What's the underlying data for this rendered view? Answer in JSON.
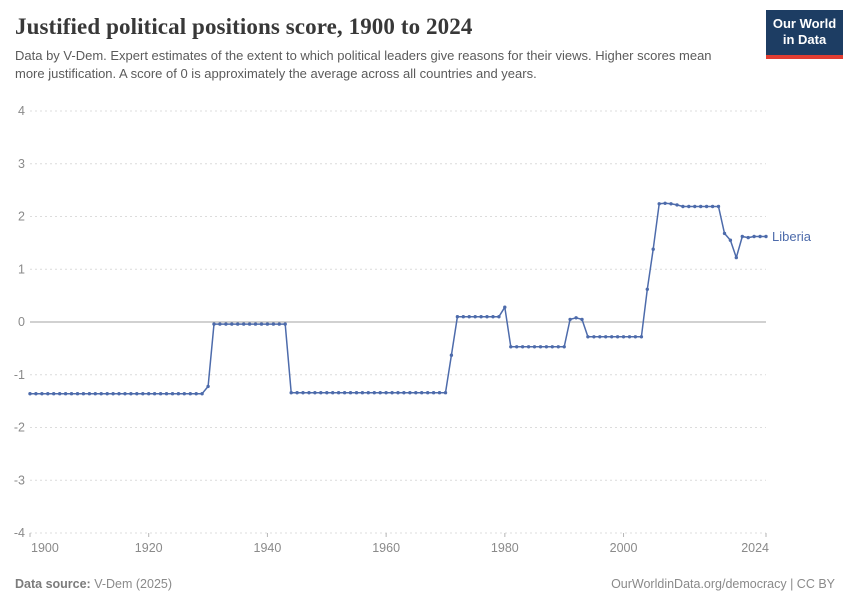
{
  "header": {
    "title": "Justified political positions score, 1900 to 2024",
    "subtitle": "Data by V-Dem. Expert estimates of the extent to which political leaders give reasons for their views. Higher scores mean more justification. A score of 0 is approximately the average across all countries and years.",
    "logo": {
      "line1": "Our World",
      "line2": "in Data",
      "bg": "#1d3d63",
      "accent": "#e23d32"
    }
  },
  "chart_data": {
    "type": "line",
    "title": "Justified political positions score, 1900 to 2024",
    "xlabel": "",
    "ylabel": "",
    "xlim": [
      1900,
      2024
    ],
    "ylim": [
      -4,
      4
    ],
    "x_ticks": [
      1900,
      1920,
      1940,
      1960,
      1980,
      2000,
      2024
    ],
    "y_ticks": [
      -4,
      -3,
      -2,
      -1,
      0,
      1,
      2,
      3,
      4
    ],
    "grid": "horizontal-dashed, zero-line-solid",
    "legend_position": "end-of-line-label",
    "series": [
      {
        "name": "Liberia",
        "color": "#4d6bab",
        "x_start": 1900,
        "x_step": 1,
        "values": [
          -1.36,
          -1.36,
          -1.36,
          -1.36,
          -1.36,
          -1.36,
          -1.36,
          -1.36,
          -1.36,
          -1.36,
          -1.36,
          -1.36,
          -1.36,
          -1.36,
          -1.36,
          -1.36,
          -1.36,
          -1.36,
          -1.36,
          -1.36,
          -1.36,
          -1.36,
          -1.36,
          -1.36,
          -1.36,
          -1.36,
          -1.36,
          -1.36,
          -1.36,
          -1.36,
          -1.22,
          -0.04,
          -0.04,
          -0.04,
          -0.04,
          -0.04,
          -0.04,
          -0.04,
          -0.04,
          -0.04,
          -0.04,
          -0.04,
          -0.04,
          -0.04,
          -1.34,
          -1.34,
          -1.34,
          -1.34,
          -1.34,
          -1.34,
          -1.34,
          -1.34,
          -1.34,
          -1.34,
          -1.34,
          -1.34,
          -1.34,
          -1.34,
          -1.34,
          -1.34,
          -1.34,
          -1.34,
          -1.34,
          -1.34,
          -1.34,
          -1.34,
          -1.34,
          -1.34,
          -1.34,
          -1.34,
          -1.34,
          -0.63,
          0.1,
          0.1,
          0.1,
          0.1,
          0.1,
          0.1,
          0.1,
          0.1,
          0.28,
          -0.47,
          -0.47,
          -0.47,
          -0.47,
          -0.47,
          -0.47,
          -0.47,
          -0.47,
          -0.47,
          -0.47,
          0.05,
          0.08,
          0.05,
          -0.28,
          -0.28,
          -0.28,
          -0.28,
          -0.28,
          -0.28,
          -0.28,
          -0.28,
          -0.28,
          -0.28,
          0.62,
          1.38,
          2.24,
          2.25,
          2.24,
          2.22,
          2.19,
          2.19,
          2.19,
          2.19,
          2.19,
          2.19,
          2.19,
          1.68,
          1.55,
          1.22,
          1.62,
          1.6,
          1.62,
          1.62,
          1.62
        ]
      }
    ],
    "annotations": [
      {
        "text": "Liberia",
        "color": "#4d6bab",
        "position": "right-of-last-point"
      }
    ]
  },
  "style_colors": {
    "axis_text": "#8a8a8a",
    "grid": "#dcdcdc",
    "zero_line": "#a3a3a3",
    "tick_mark": "#b5b5b5"
  },
  "footer": {
    "source_label": "Data source:",
    "source_value": " V-Dem (2025)",
    "credit": "OurWorldinData.org/democracy | CC BY"
  }
}
